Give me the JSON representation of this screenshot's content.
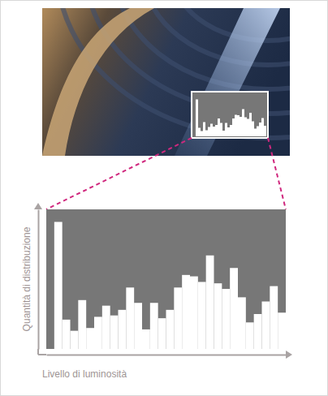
{
  "chart_data": {
    "type": "histogram",
    "x_label": "Livello di luminosità",
    "y_label": "Quantità di distribuzione",
    "bins": [
      0,
      1,
      2,
      3,
      4,
      5,
      6,
      7,
      8,
      9,
      10,
      11,
      12,
      13,
      14,
      15,
      16,
      17,
      18,
      19,
      20,
      21,
      22,
      23,
      24,
      25,
      26,
      27,
      28,
      29,
      30
    ],
    "counts": [
      0,
      91,
      21,
      13,
      35,
      15,
      23,
      31,
      24,
      28,
      44,
      33,
      14,
      33,
      22,
      28,
      44,
      53,
      52,
      48,
      67,
      47,
      43,
      58,
      37,
      19,
      25,
      34,
      45,
      26
    ],
    "xlim": [
      0,
      30
    ],
    "ylim": [
      0,
      100
    ],
    "tick_labels": false,
    "color": "#ffffff"
  }
}
